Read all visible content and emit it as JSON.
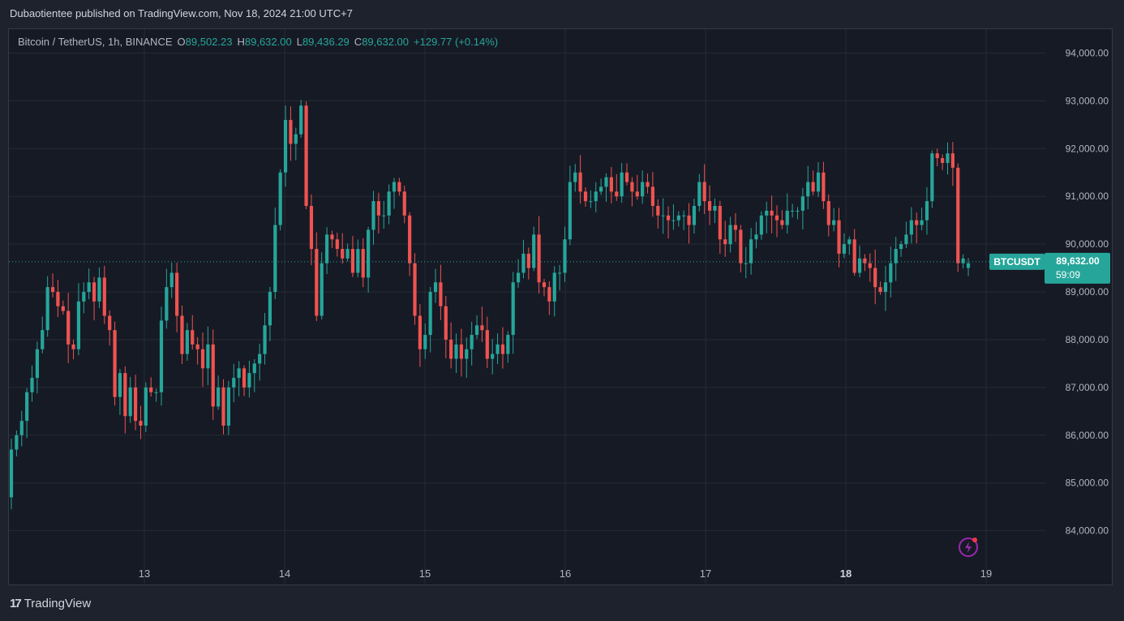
{
  "header": {
    "publisher_line": "Dubaotientee published on TradingView.com, Nov 18, 2024 21:00 UTC+7"
  },
  "legend": {
    "symbol": "Bitcoin / TetherUS, 1h, BINANCE",
    "open_key": "O",
    "open": "89,502.23",
    "high_key": "H",
    "high": "89,632.00",
    "low_key": "L",
    "low": "89,436.29",
    "close_key": "C",
    "close": "89,632.00",
    "change": "+129.77 (+0.14%)"
  },
  "price_tag": {
    "symbol": "BTCUSDT",
    "price": "89,632.00",
    "countdown": "59:09"
  },
  "brand": {
    "logo_mark": "17",
    "name": "TradingView"
  },
  "colors": {
    "up": "#26a69a",
    "down": "#ef5350",
    "grid": "#262a35",
    "axis_text": "#b2b5be",
    "background": "#161a25"
  },
  "chart_data": {
    "type": "candlestick",
    "symbol": "BTCUSDT",
    "interval": "1h",
    "exchange": "BINANCE",
    "ylim": [
      83400,
      94500
    ],
    "x_ticks": [
      "13",
      "14",
      "15",
      "16",
      "17",
      "18",
      "19"
    ],
    "y_ticks": [
      "84,000.00",
      "85,000.00",
      "86,000.00",
      "87,000.00",
      "88,000.00",
      "89,000.00",
      "90,000.00",
      "91,000.00",
      "92,000.00",
      "93,000.00",
      "94,000.00"
    ],
    "last_price": 89632,
    "bold_x_tick": "18",
    "closes": [
      85700,
      86000,
      86300,
      86900,
      87200,
      87800,
      88200,
      89100,
      89000,
      88700,
      88600,
      87900,
      87800,
      88800,
      89000,
      89200,
      88800,
      89300,
      88500,
      88200,
      86800,
      87300,
      86400,
      87000,
      86300,
      86200,
      87000,
      86900,
      86900,
      88400,
      89100,
      89400,
      88500,
      87700,
      88200,
      87900,
      87800,
      87400,
      87900,
      86600,
      87000,
      86200,
      87000,
      87200,
      87400,
      87000,
      87300,
      87500,
      87700,
      88300,
      89000,
      90400,
      91500,
      92600,
      92100,
      92300,
      92900,
      90800,
      89900,
      88500,
      89600,
      90200,
      90100,
      89900,
      89700,
      89900,
      89400,
      89900,
      89300,
      90300,
      90900,
      90600,
      90600,
      91100,
      91300,
      91100,
      90600,
      89600,
      88500,
      87800,
      88100,
      89000,
      89200,
      88700,
      88000,
      87600,
      87900,
      87600,
      87800,
      88100,
      88300,
      88200,
      87600,
      87700,
      87900,
      87700,
      88100,
      89200,
      89400,
      89800,
      89500,
      90200,
      89200,
      89100,
      88800,
      89400,
      89400,
      90100,
      91300,
      91500,
      91100,
      90900,
      90900,
      91100,
      91200,
      91400,
      91100,
      91000,
      91500,
      91300,
      91100,
      91000,
      91300,
      91200,
      90800,
      90600,
      90600,
      90500,
      90500,
      90600,
      90600,
      90400,
      90800,
      91300,
      90900,
      90700,
      90800,
      90100,
      90000,
      90400,
      90300,
      89600,
      89600,
      90100,
      90200,
      90600,
      90700,
      90600,
      90500,
      90400,
      90700,
      90700,
      90700,
      91000,
      91300,
      91100,
      91500,
      90900,
      90400,
      90500,
      89800,
      90000,
      90100,
      89400,
      89700,
      89600,
      89500,
      89100,
      89000,
      89200,
      89600,
      89900,
      90000,
      90200,
      90500,
      90400,
      90500,
      90900,
      91900,
      91800,
      91700,
      91900,
      91600,
      89600,
      89700,
      89600
    ]
  }
}
